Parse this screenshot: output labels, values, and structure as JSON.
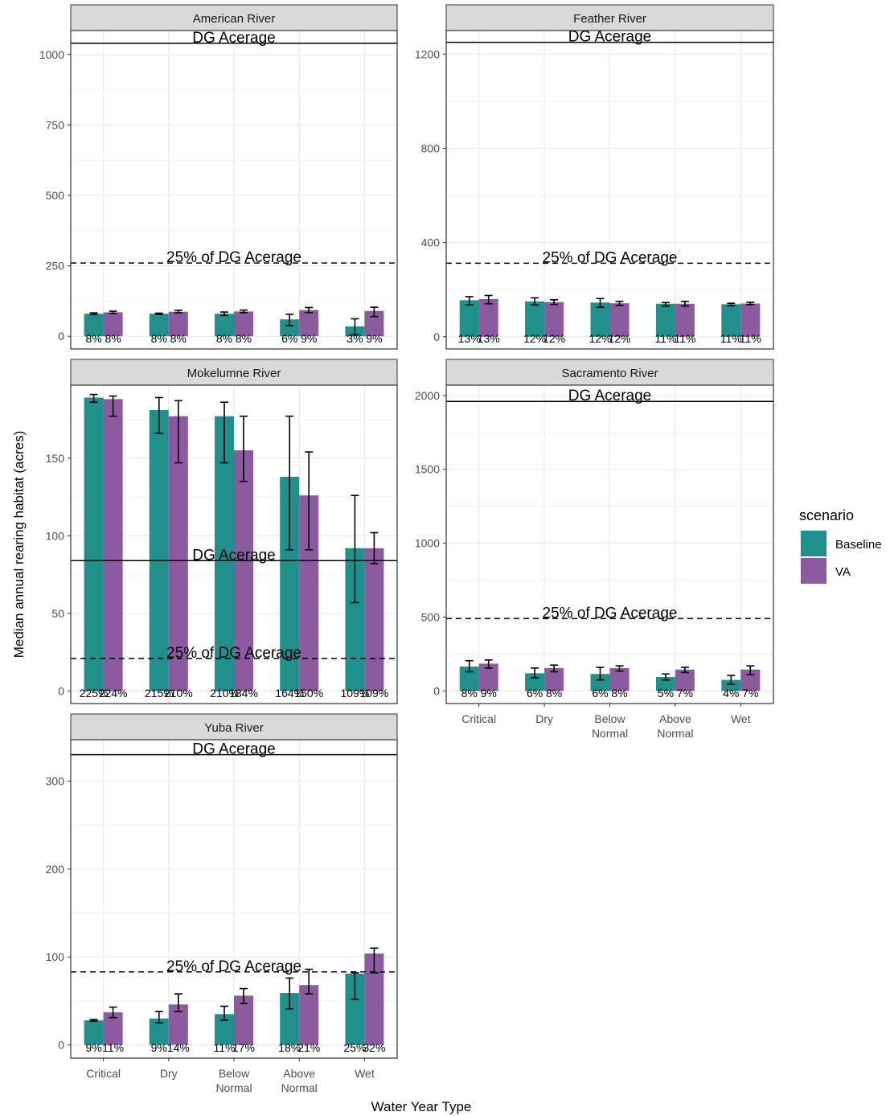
{
  "chart_data": {
    "type": "bar",
    "facet_by": "river",
    "xlabel": "Water Year Type",
    "ylabel": "Median annual rearing habitat (acres)",
    "categories": [
      [
        "Critical"
      ],
      [
        "Dry"
      ],
      [
        "Below",
        "Normal"
      ],
      [
        "Above",
        "Normal"
      ],
      [
        "Wet"
      ]
    ],
    "legend": {
      "title": "scenario",
      "placement": "right",
      "entries": [
        {
          "name": "Baseline",
          "color": "#21908c"
        },
        {
          "name": "VA",
          "color": "#8c5a9e"
        }
      ]
    },
    "reference_lines": {
      "solid_label": "DG Acerage",
      "dashed_label": "25% of DG Acerage"
    },
    "panels": [
      {
        "title": "American River",
        "ylim": [
          -45,
          1085
        ],
        "yticks": [
          0,
          250,
          500,
          750,
          1000
        ],
        "dg": 1040,
        "dg25": 260,
        "series": [
          {
            "name": "Baseline",
            "values": [
              80,
              80,
              80,
              60,
              35
            ],
            "err_low": [
              77,
              78,
              74,
              38,
              5
            ],
            "err_high": [
              83,
              82,
              86,
              78,
              62
            ],
            "pct": [
              "8%",
              "8%",
              "8%",
              "6%",
              "3%"
            ]
          },
          {
            "name": "VA",
            "values": [
              85,
              87,
              88,
              93,
              90
            ],
            "err_low": [
              81,
              83,
              84,
              84,
              70
            ],
            "err_high": [
              89,
              92,
              93,
              102,
              103
            ],
            "pct": [
              "8%",
              "8%",
              "8%",
              "9%",
              "9%"
            ]
          }
        ]
      },
      {
        "title": "Feather River",
        "ylim": [
          -52,
          1300
        ],
        "yticks": [
          0,
          400,
          800,
          1200
        ],
        "dg": 1250,
        "dg25": 312,
        "series": [
          {
            "name": "Baseline",
            "values": [
              155,
              150,
              145,
              140,
              138
            ],
            "err_low": [
              135,
              135,
              125,
              130,
              132
            ],
            "err_high": [
              170,
              165,
              162,
              145,
              142
            ],
            "pct": [
              "13%",
              "12%",
              "12%",
              "11%",
              "11%"
            ]
          },
          {
            "name": "VA",
            "values": [
              160,
              147,
              142,
              140,
              141
            ],
            "err_low": [
              140,
              137,
              133,
              130,
              136
            ],
            "err_high": [
              175,
              157,
              150,
              150,
              146
            ],
            "pct": [
              "13%",
              "12%",
              "12%",
              "11%",
              "11%"
            ]
          }
        ]
      },
      {
        "title": "Mokelumne River",
        "ylim": [
          -8,
          197
        ],
        "yticks": [
          0,
          50,
          100,
          150
        ],
        "dg": 84,
        "dg25": 21,
        "series": [
          {
            "name": "Baseline",
            "values": [
              189,
              181,
              177,
              138,
              92
            ],
            "err_low": [
              186,
              166,
              147,
              91,
              57
            ],
            "err_high": [
              191,
              189,
              186,
              177,
              126
            ],
            "pct": [
              "225%",
              "215%",
              "210%",
              "164%",
              "109%"
            ]
          },
          {
            "name": "VA",
            "values": [
              188,
              177,
              155,
              126,
              92
            ],
            "err_low": [
              177,
              147,
              135,
              91,
              82
            ],
            "err_high": [
              190,
              187,
              177,
              154,
              102
            ],
            "pct": [
              "224%",
              "210%",
              "184%",
              "150%",
              "109%"
            ]
          }
        ]
      },
      {
        "title": "Sacramento River",
        "ylim": [
          -85,
          2070
        ],
        "yticks": [
          0,
          500,
          1000,
          1500,
          2000
        ],
        "dg": 1960,
        "dg25": 490,
        "series": [
          {
            "name": "Baseline",
            "values": [
              165,
              120,
              115,
              95,
              75
            ],
            "err_low": [
              130,
              90,
              75,
              75,
              45
            ],
            "err_high": [
              205,
              155,
              160,
              115,
              105
            ],
            "pct": [
              "8%",
              "6%",
              "6%",
              "5%",
              "4%"
            ]
          },
          {
            "name": "VA",
            "values": [
              185,
              155,
              155,
              145,
              145
            ],
            "err_low": [
              155,
              130,
              135,
              125,
              110
            ],
            "err_high": [
              210,
              175,
              170,
              160,
              170
            ],
            "pct": [
              "9%",
              "8%",
              "8%",
              "7%",
              "7%"
            ]
          }
        ]
      },
      {
        "title": "Yuba River",
        "ylim": [
          -15,
          347
        ],
        "yticks": [
          0,
          100,
          200,
          300
        ],
        "dg": 330,
        "dg25": 83,
        "series": [
          {
            "name": "Baseline",
            "values": [
              28,
              30,
              35,
              59,
              81
            ],
            "err_low": [
              27,
              25,
              28,
              41,
              52
            ],
            "err_high": [
              29,
              38,
              44,
              76,
              82
            ],
            "pct": [
              "9%",
              "9%",
              "11%",
              "18%",
              "25%"
            ]
          },
          {
            "name": "VA",
            "values": [
              37,
              46,
              56,
              68,
              104
            ],
            "err_low": [
              31,
              38,
              47,
              58,
              82
            ],
            "err_high": [
              43,
              58,
              64,
              86,
              110
            ],
            "pct": [
              "11%",
              "14%",
              "17%",
              "21%",
              "32%"
            ]
          }
        ]
      }
    ]
  }
}
